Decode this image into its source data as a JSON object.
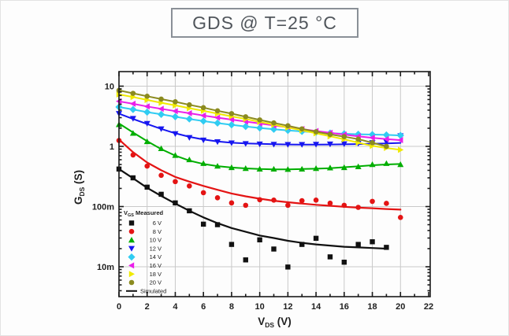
{
  "page": {
    "title": "GDS @ T=25 °C"
  },
  "chart_data": {
    "type": "line",
    "title": "GDS @ T=25 °C",
    "xlabel": {
      "main": "V",
      "sub": "DS",
      "unit": "(V)"
    },
    "ylabel": {
      "main": "G",
      "sub": "DS",
      "unit": "(S)"
    },
    "xlim": [
      0,
      22
    ],
    "ylim": [
      0.0032,
      17.5
    ],
    "yscale": "log",
    "grid": true,
    "x_major_ticks": [
      0,
      2,
      4,
      6,
      8,
      10,
      12,
      14,
      16,
      18,
      20,
      22
    ],
    "y_tick_labels": [
      {
        "g": 10,
        "label": "10"
      },
      {
        "g": 1,
        "label": "1"
      },
      {
        "g": 0.1,
        "label": "100m"
      },
      {
        "g": 0.01,
        "label": "10m"
      }
    ],
    "y_grid_decades": [
      0.01,
      0.1,
      1,
      10
    ],
    "legend": {
      "title_main": "V",
      "title_sub": "GS",
      "title_rest": " Measured",
      "simulated_label": "Simulated",
      "position": "lower-left"
    },
    "colors": {
      "frame": "#1a1a1a",
      "grid": "#c9c9c9",
      "tick_label": "#1f1f1f",
      "title_border": "#8a9097",
      "title_text": "#50555b"
    },
    "series": [
      {
        "name": "6 V",
        "color": "#111111",
        "marker": "square",
        "measured": {
          "x": [
            0,
            1,
            2,
            3,
            4,
            5,
            6,
            7,
            8,
            9,
            10,
            11,
            12,
            13,
            14,
            15,
            16,
            17,
            18,
            19
          ],
          "y": [
            0.42,
            0.3,
            0.21,
            0.16,
            0.115,
            0.085,
            0.051,
            0.05,
            0.0235,
            0.013,
            0.028,
            0.0197,
            0.0099,
            0.0235,
            0.0297,
            0.0146,
            0.0119,
            0.0235,
            0.026,
            0.021
          ]
        },
        "simulated": {
          "x": [
            0,
            1,
            2,
            3,
            4,
            5,
            6,
            7,
            8,
            9,
            10,
            11,
            12,
            13,
            14,
            15,
            16,
            17,
            18,
            19
          ],
          "y": [
            0.42,
            0.295,
            0.205,
            0.15,
            0.112,
            0.085,
            0.066,
            0.053,
            0.044,
            0.038,
            0.033,
            0.03,
            0.027,
            0.025,
            0.0235,
            0.0225,
            0.0215,
            0.021,
            0.0205,
            0.02
          ]
        }
      },
      {
        "name": "8 V",
        "color": "#e41414",
        "marker": "circle",
        "measured": {
          "x": [
            0,
            1,
            2,
            3,
            4,
            5,
            6,
            7,
            8,
            9,
            10,
            11,
            12,
            13,
            14,
            15,
            16,
            17,
            18,
            19,
            20
          ],
          "y": [
            1.25,
            0.72,
            0.47,
            0.33,
            0.26,
            0.22,
            0.17,
            0.14,
            0.115,
            0.105,
            0.13,
            0.128,
            0.105,
            0.125,
            0.128,
            0.114,
            0.105,
            0.097,
            0.122,
            0.113,
            0.066
          ]
        },
        "simulated": {
          "x": [
            0,
            1,
            2,
            3,
            4,
            5,
            6,
            7,
            8,
            9,
            10,
            11,
            12,
            13,
            14,
            15,
            16,
            17,
            18,
            19,
            20
          ],
          "y": [
            1.3,
            0.8,
            0.54,
            0.4,
            0.31,
            0.26,
            0.22,
            0.19,
            0.165,
            0.148,
            0.135,
            0.125,
            0.118,
            0.112,
            0.107,
            0.103,
            0.099,
            0.096,
            0.094,
            0.091,
            0.089
          ]
        }
      },
      {
        "name": "10 V",
        "color": "#00ae00",
        "marker": "triangle-up",
        "measured": {
          "x": [
            0,
            1,
            2,
            3,
            4,
            5,
            6,
            7,
            8,
            9,
            10,
            11,
            12,
            13,
            14,
            15,
            16,
            17,
            18,
            19,
            20
          ],
          "y": [
            2.3,
            1.65,
            1.2,
            0.92,
            0.71,
            0.6,
            0.52,
            0.47,
            0.445,
            0.43,
            0.42,
            0.42,
            0.415,
            0.42,
            0.43,
            0.44,
            0.445,
            0.46,
            0.5,
            0.52,
            0.5
          ]
        },
        "simulated": {
          "x": [
            0,
            1,
            2,
            3,
            4,
            5,
            6,
            7,
            8,
            9,
            10,
            11,
            12,
            13,
            14,
            15,
            16,
            17,
            18,
            19,
            20
          ],
          "y": [
            2.4,
            1.7,
            1.22,
            0.9,
            0.7,
            0.58,
            0.51,
            0.47,
            0.445,
            0.43,
            0.42,
            0.415,
            0.415,
            0.42,
            0.425,
            0.435,
            0.45,
            0.465,
            0.485,
            0.5,
            0.51
          ]
        }
      },
      {
        "name": "12 V",
        "color": "#1616f0",
        "marker": "triangle-down",
        "measured": {
          "x": [
            0,
            1,
            2,
            3,
            4,
            5,
            6,
            7,
            8,
            9,
            10,
            11,
            12,
            13,
            14,
            15,
            16,
            17,
            18,
            19,
            20
          ],
          "y": [
            3.5,
            2.9,
            2.4,
            1.95,
            1.62,
            1.4,
            1.27,
            1.19,
            1.14,
            1.11,
            1.09,
            1.08,
            1.07,
            1.07,
            1.08,
            1.09,
            1.1,
            1.12,
            1.15,
            1.19,
            1.5
          ]
        },
        "simulated": {
          "x": [
            0,
            1,
            2,
            3,
            4,
            5,
            6,
            7,
            8,
            9,
            10,
            11,
            12,
            13,
            14,
            15,
            16,
            17,
            18,
            19,
            20
          ],
          "y": [
            3.5,
            2.85,
            2.35,
            1.95,
            1.65,
            1.44,
            1.3,
            1.21,
            1.15,
            1.12,
            1.1,
            1.085,
            1.075,
            1.07,
            1.07,
            1.075,
            1.08,
            1.09,
            1.1,
            1.12,
            1.14
          ]
        }
      },
      {
        "name": "14 V",
        "color": "#30ccf2",
        "marker": "diamond",
        "measured": {
          "x": [
            0,
            1,
            2,
            3,
            4,
            5,
            6,
            7,
            8,
            9,
            10,
            11,
            12,
            13,
            14,
            15,
            16,
            17,
            18,
            19,
            20
          ],
          "y": [
            4.5,
            4.1,
            3.7,
            3.4,
            3.1,
            2.85,
            2.63,
            2.44,
            2.28,
            2.14,
            2.02,
            1.92,
            1.84,
            1.77,
            1.71,
            1.66,
            1.62,
            1.59,
            1.57,
            1.55,
            1.52
          ]
        },
        "simulated": {
          "x": [
            0,
            1,
            2,
            3,
            4,
            5,
            6,
            7,
            8,
            9,
            10,
            11,
            12,
            13,
            14,
            15,
            16,
            17,
            18,
            19,
            20
          ],
          "y": [
            4.5,
            4.1,
            3.7,
            3.4,
            3.1,
            2.85,
            2.63,
            2.44,
            2.28,
            2.14,
            2.02,
            1.92,
            1.84,
            1.77,
            1.71,
            1.66,
            1.62,
            1.59,
            1.57,
            1.55,
            1.52
          ]
        }
      },
      {
        "name": "16 V",
        "color": "#ea1fea",
        "marker": "triangle-left",
        "measured": {
          "x": [
            0,
            1,
            2,
            3,
            4,
            5,
            6,
            7,
            8,
            9,
            10,
            11,
            12,
            13,
            14,
            15,
            16,
            17,
            18,
            19,
            20
          ],
          "y": [
            5.6,
            5.1,
            4.6,
            4.2,
            3.85,
            3.55,
            3.25,
            3.0,
            2.78,
            2.58,
            2.4,
            2.23,
            2.08,
            1.94,
            1.8,
            1.68,
            1.57,
            1.47,
            1.39,
            1.32,
            1.27
          ]
        },
        "simulated": {
          "x": [
            0,
            1,
            2,
            3,
            4,
            5,
            6,
            7,
            8,
            9,
            10,
            11,
            12,
            13,
            14,
            15,
            16,
            17,
            18,
            19,
            20
          ],
          "y": [
            5.6,
            5.1,
            4.6,
            4.2,
            3.85,
            3.55,
            3.25,
            3.0,
            2.78,
            2.58,
            2.4,
            2.23,
            2.08,
            1.94,
            1.8,
            1.68,
            1.57,
            1.47,
            1.39,
            1.32,
            1.27
          ]
        }
      },
      {
        "name": "18 V",
        "color": "#f0ea00",
        "marker": "triangle-right",
        "measured": {
          "x": [
            0,
            1,
            2,
            3,
            4,
            5,
            6,
            7,
            8,
            9,
            10,
            11,
            12,
            13,
            14,
            15,
            16,
            17,
            18,
            19,
            20
          ],
          "y": [
            7.3,
            6.6,
            5.9,
            5.3,
            4.8,
            4.3,
            3.9,
            3.5,
            3.15,
            2.85,
            2.55,
            2.3,
            2.05,
            1.85,
            1.65,
            1.47,
            1.31,
            1.15,
            1.02,
            0.94,
            0.875
          ]
        },
        "simulated": {
          "x": [
            0,
            1,
            2,
            3,
            4,
            5,
            6,
            7,
            8,
            9,
            10,
            11,
            12,
            13,
            14,
            15,
            16,
            17,
            18,
            19,
            20
          ],
          "y": [
            7.3,
            6.6,
            5.9,
            5.3,
            4.8,
            4.3,
            3.9,
            3.5,
            3.15,
            2.85,
            2.55,
            2.3,
            2.05,
            1.85,
            1.65,
            1.47,
            1.31,
            1.15,
            1.02,
            0.94,
            0.875
          ]
        }
      },
      {
        "name": "20 V",
        "color": "#8b8b1f",
        "marker": "circle",
        "measured": {
          "x": [
            0,
            1,
            2,
            3,
            4,
            5,
            6,
            7,
            8,
            9,
            10,
            11,
            12,
            13,
            14,
            15,
            16,
            17,
            18,
            19
          ],
          "y": [
            8.5,
            7.6,
            6.8,
            6.1,
            5.5,
            4.9,
            4.4,
            3.9,
            3.5,
            3.1,
            2.75,
            2.45,
            2.2,
            1.95,
            1.75,
            1.58,
            1.45,
            1.32,
            1.15,
            1.0
          ]
        },
        "simulated": {
          "x": [
            0,
            1,
            2,
            3,
            4,
            5,
            6,
            7,
            8,
            9,
            10,
            11,
            12,
            13,
            14,
            15,
            16,
            17,
            18,
            19
          ],
          "y": [
            8.5,
            7.6,
            6.8,
            6.1,
            5.5,
            4.9,
            4.4,
            3.9,
            3.5,
            3.1,
            2.75,
            2.45,
            2.2,
            1.95,
            1.75,
            1.58,
            1.45,
            1.32,
            1.15,
            1.0
          ]
        }
      }
    ]
  }
}
